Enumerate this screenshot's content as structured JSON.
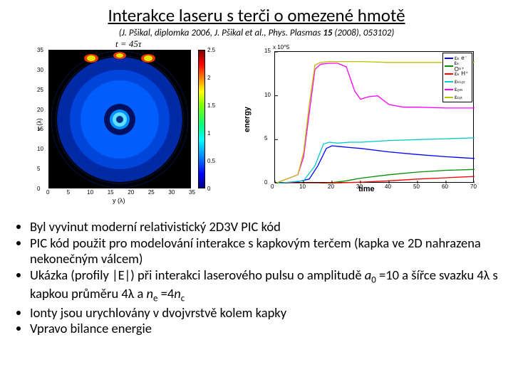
{
  "title": "Interakce laseru s terči o omezené hmotě",
  "citation_pre": "(J. Pšikal, diplomka 2006, J. Pšikal et al., Phys. Plasmas ",
  "citation_bold": "15",
  "citation_post": " (2008), 053102)",
  "subtitle_pre": "t",
  "subtitle_mid": " = 45",
  "subtitle_tau": "τ",
  "heatmap": {
    "ylabel": "x (λ)",
    "xlabel": "y (λ)",
    "yticks": [
      0,
      5,
      10,
      15,
      20,
      25,
      30,
      35
    ],
    "xticks": [
      0,
      5,
      10,
      15,
      20,
      25,
      30,
      35
    ],
    "cticks": [
      0,
      0.5,
      1,
      1.5,
      2,
      2.5
    ],
    "grad_stops": [
      {
        "c": "#800000",
        "p": 0
      },
      {
        "c": "#ff0000",
        "p": 10
      },
      {
        "c": "#ff8000",
        "p": 20
      },
      {
        "c": "#ffff00",
        "p": 30
      },
      {
        "c": "#80ff00",
        "p": 40
      },
      {
        "c": "#00ff80",
        "p": 55
      },
      {
        "c": "#00ffff",
        "p": 65
      },
      {
        "c": "#0080ff",
        "p": 78
      },
      {
        "c": "#0000ff",
        "p": 90
      },
      {
        "c": "#000080",
        "p": 100
      }
    ],
    "background": "#000000",
    "ring_color": "#0040cc",
    "core_color": "#00c0ff",
    "hot_color": "#ffff00"
  },
  "linechart": {
    "ylabel": "energy",
    "xlabel": "time",
    "yexp": "x 10^5",
    "ylim": [
      0,
      15
    ],
    "yticks": [
      0,
      5,
      10,
      15
    ],
    "xlim": [
      0,
      70
    ],
    "xticks": [
      0,
      10,
      20,
      30,
      40,
      50,
      60,
      70
    ],
    "legend": [
      {
        "label": "εₖ e⁻",
        "color": "#0000ff"
      },
      {
        "label": "εₖ O⁶⁺",
        "color": "#009000"
      },
      {
        "label": "εₖ H⁺",
        "color": "#ff0000"
      },
      {
        "label": "εₖₜₒₜ",
        "color": "#00cccc"
      },
      {
        "label": "εₑₘ",
        "color": "#ff00ff"
      },
      {
        "label": "εₜₒₜ",
        "color": "#c0c000"
      }
    ],
    "series": {
      "blue": {
        "color": "#0000ff",
        "pts": [
          [
            0,
            0
          ],
          [
            8,
            0.2
          ],
          [
            12,
            0.5
          ],
          [
            15,
            2
          ],
          [
            18,
            4
          ],
          [
            20,
            4.3
          ],
          [
            23,
            4.2
          ],
          [
            26,
            4.1
          ],
          [
            30,
            4
          ],
          [
            40,
            3.6
          ],
          [
            50,
            3.3
          ],
          [
            60,
            3.05
          ],
          [
            70,
            2.85
          ]
        ]
      },
      "green": {
        "color": "#009000",
        "pts": [
          [
            0,
            0
          ],
          [
            15,
            0
          ],
          [
            20,
            0.1
          ],
          [
            25,
            0.3
          ],
          [
            30,
            0.6
          ],
          [
            40,
            1.0
          ],
          [
            50,
            1.3
          ],
          [
            60,
            1.5
          ],
          [
            70,
            1.6
          ]
        ]
      },
      "red": {
        "color": "#ff0000",
        "pts": [
          [
            0,
            0
          ],
          [
            15,
            0
          ],
          [
            20,
            0.05
          ],
          [
            30,
            0.15
          ],
          [
            40,
            0.3
          ],
          [
            50,
            0.5
          ],
          [
            60,
            0.65
          ],
          [
            70,
            0.8
          ]
        ]
      },
      "cyan": {
        "color": "#00cccc",
        "pts": [
          [
            0,
            0
          ],
          [
            10,
            0.3
          ],
          [
            14,
            2
          ],
          [
            17,
            4.5
          ],
          [
            19,
            4.7
          ],
          [
            22,
            4.6
          ],
          [
            26,
            4.7
          ],
          [
            30,
            4.7
          ],
          [
            40,
            4.9
          ],
          [
            50,
            5
          ],
          [
            60,
            5.1
          ],
          [
            70,
            5.2
          ]
        ]
      },
      "magenta": {
        "color": "#ff00ff",
        "pts": [
          [
            0,
            0
          ],
          [
            8,
            1
          ],
          [
            10,
            3
          ],
          [
            12,
            8
          ],
          [
            14,
            13
          ],
          [
            16,
            13.6
          ],
          [
            19,
            13.7
          ],
          [
            22,
            13.7
          ],
          [
            25,
            13.3
          ],
          [
            28,
            10.5
          ],
          [
            30,
            9.6
          ],
          [
            33,
            9.9
          ],
          [
            36,
            10
          ],
          [
            40,
            9
          ],
          [
            45,
            8.7
          ],
          [
            50,
            8.7
          ],
          [
            60,
            8.6
          ],
          [
            70,
            8.6
          ]
        ]
      },
      "yellow": {
        "color": "#c0c000",
        "pts": [
          [
            0,
            0
          ],
          [
            8,
            1
          ],
          [
            10,
            3.5
          ],
          [
            12,
            9
          ],
          [
            14,
            13.5
          ],
          [
            16,
            13.8
          ],
          [
            19,
            13.9
          ],
          [
            25,
            13.9
          ],
          [
            30,
            13.9
          ],
          [
            40,
            13.8
          ],
          [
            50,
            13.8
          ],
          [
            60,
            13.8
          ],
          [
            70,
            13.8
          ]
        ]
      }
    }
  },
  "bullets": [
    "Byl vyvinut moderní relativistický 2D3V PIC kód",
    "PIC kód použit pro modelování interakce s kapkovým terčem (kapka ve 2D nahrazena nekonečným válcem)",
    "Ukázka (profily |E|) při interakci laserového pulsu o amplitudě <i>a</i><sub>0</sub> =10 a šířce svazku 4λ s kapkou průměru 4λ a <i>n</i><sub>e</sub> =4<i>n</i><sub>c</sub>",
    "Ionty jsou urychlovány v dvojvrstvě kolem kapky",
    "Vpravo bilance energie"
  ]
}
